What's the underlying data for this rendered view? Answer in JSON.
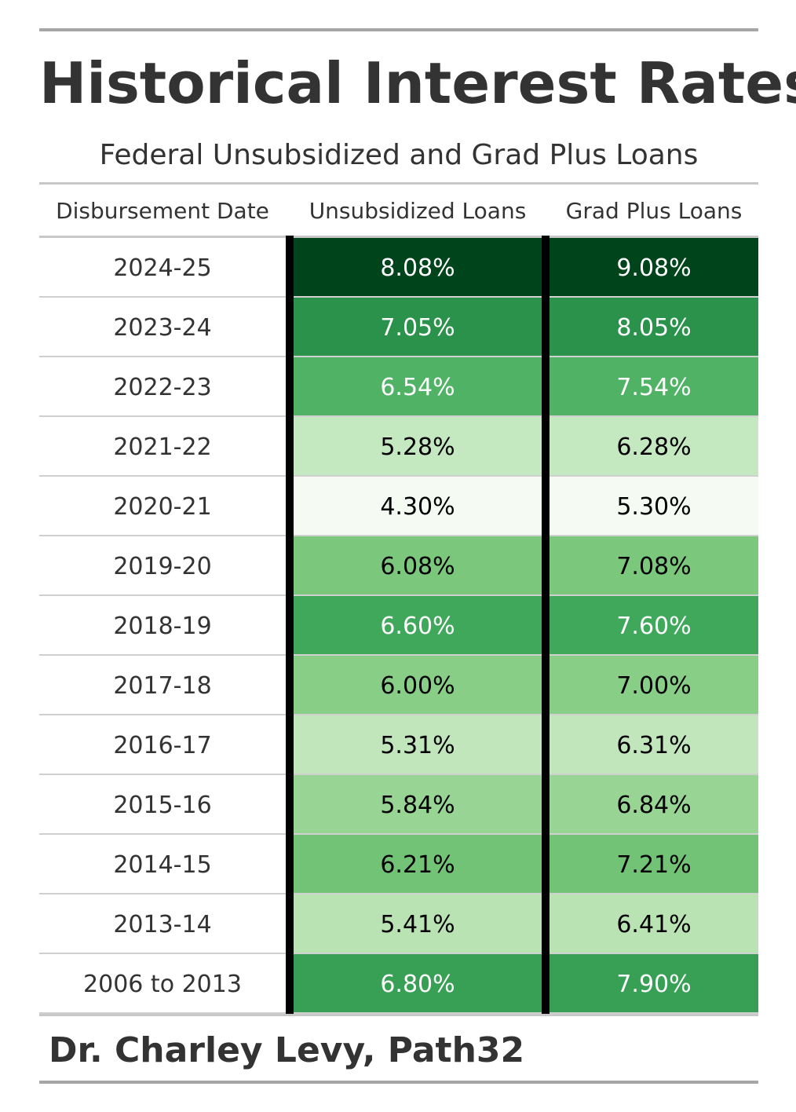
{
  "title": "Historical Interest Rates",
  "subtitle": "Federal Unsubsidized and Grad Plus Loans",
  "credit": "Dr. Charley Levy, Path32",
  "headers": [
    "Disbursement Date",
    "Unsubsidized Loans",
    "Grad Plus Loans"
  ],
  "chart_data": {
    "type": "table",
    "columns": [
      "Disbursement Date",
      "Unsubsidized Loans",
      "Grad Plus Loans"
    ],
    "rows": [
      {
        "date": "2024-25",
        "unsub": "8.08%",
        "grad": "9.08%",
        "unsub_color": "#00441b",
        "grad_color": "#00441b",
        "unsub_text": "#ffffff",
        "grad_text": "#ffffff"
      },
      {
        "date": "2023-24",
        "unsub": "7.05%",
        "grad": "8.05%",
        "unsub_color": "#2a924a",
        "grad_color": "#2a924a",
        "unsub_text": "#ffffff",
        "grad_text": "#ffffff"
      },
      {
        "date": "2022-23",
        "unsub": "6.54%",
        "grad": "7.54%",
        "unsub_color": "#4fb264",
        "grad_color": "#4fb264",
        "unsub_text": "#ffffff",
        "grad_text": "#ffffff"
      },
      {
        "date": "2021-22",
        "unsub": "5.28%",
        "grad": "6.28%",
        "unsub_color": "#c4e8c0",
        "grad_color": "#c4e8c0",
        "unsub_text": "#000000",
        "grad_text": "#000000"
      },
      {
        "date": "2020-21",
        "unsub": "4.30%",
        "grad": "5.30%",
        "unsub_color": "#f5fbf2",
        "grad_color": "#f5fbf2",
        "unsub_text": "#000000",
        "grad_text": "#000000"
      },
      {
        "date": "2019-20",
        "unsub": "6.08%",
        "grad": "7.08%",
        "unsub_color": "#7bc87c",
        "grad_color": "#7bc87c",
        "unsub_text": "#000000",
        "grad_text": "#000000"
      },
      {
        "date": "2018-19",
        "unsub": "6.60%",
        "grad": "7.60%",
        "unsub_color": "#3fa85b",
        "grad_color": "#3fa85b",
        "unsub_text": "#ffffff",
        "grad_text": "#ffffff"
      },
      {
        "date": "2017-18",
        "unsub": "6.00%",
        "grad": "7.00%",
        "unsub_color": "#88ce87",
        "grad_color": "#88ce87",
        "unsub_text": "#000000",
        "grad_text": "#000000"
      },
      {
        "date": "2016-17",
        "unsub": "5.31%",
        "grad": "6.31%",
        "unsub_color": "#c1e6bc",
        "grad_color": "#c1e6bc",
        "unsub_text": "#000000",
        "grad_text": "#000000"
      },
      {
        "date": "2015-16",
        "unsub": "5.84%",
        "grad": "6.84%",
        "unsub_color": "#98d594",
        "grad_color": "#98d594",
        "unsub_text": "#000000",
        "grad_text": "#000000"
      },
      {
        "date": "2014-15",
        "unsub": "6.21%",
        "grad": "7.21%",
        "unsub_color": "#72c375",
        "grad_color": "#72c375",
        "unsub_text": "#000000",
        "grad_text": "#000000"
      },
      {
        "date": "2013-14",
        "unsub": "5.41%",
        "grad": "6.41%",
        "unsub_color": "#b9e3b3",
        "grad_color": "#b9e3b3",
        "unsub_text": "#000000",
        "grad_text": "#000000"
      },
      {
        "date": "2006 to 2013",
        "unsub": "6.80%",
        "grad": "7.90%",
        "unsub_color": "#37a055",
        "grad_color": "#37a055",
        "unsub_text": "#ffffff",
        "grad_text": "#ffffff"
      }
    ]
  }
}
